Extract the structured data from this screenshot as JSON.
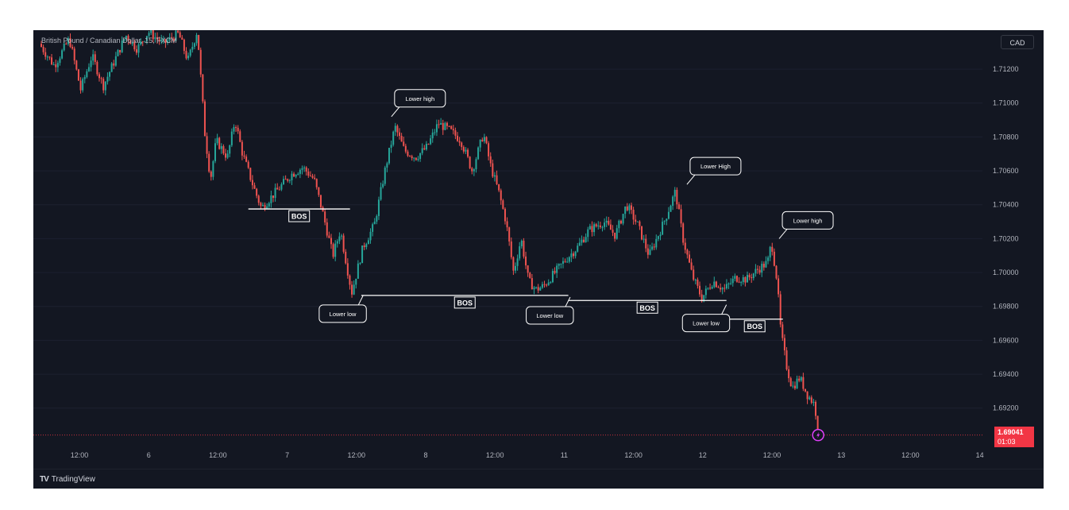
{
  "header": {
    "symbol_title": "British Pound / Canadian Dollar, 15, FXCM",
    "currency": "CAD"
  },
  "price_badge": {
    "price": "1.69041",
    "countdown": "01:03",
    "color": "#f23645"
  },
  "footer": {
    "brand": "TradingView",
    "logo_mark": "TV"
  },
  "colors": {
    "background": "#131722",
    "up": "#26a69a",
    "down": "#ef5350",
    "annotation": "#ffffff",
    "alert": "#e040fb"
  },
  "chart_data": {
    "type": "candlestick",
    "title": "British Pound / Canadian Dollar, 15, FXCM",
    "ylim": [
      1.6903,
      1.7143
    ],
    "y_ticks": [
      "1.71200",
      "1.71000",
      "1.70800",
      "1.70600",
      "1.70400",
      "1.70200",
      "1.70000",
      "1.69800",
      "1.69600",
      "1.69400",
      "1.69200"
    ],
    "x_ticks": [
      "12:00",
      "6",
      "12:00",
      "7",
      "12:00",
      "8",
      "12:00",
      "11",
      "12:00",
      "12",
      "12:00",
      "13",
      "12:00",
      "14"
    ],
    "x_range": [
      0,
      25
    ],
    "last_price": 1.69041,
    "price_path": [
      {
        "t": 0.0,
        "p": 1.7135
      },
      {
        "t": 0.4,
        "p": 1.7122
      },
      {
        "t": 0.8,
        "p": 1.7138
      },
      {
        "t": 1.1,
        "p": 1.7108
      },
      {
        "t": 1.4,
        "p": 1.7128
      },
      {
        "t": 1.7,
        "p": 1.711
      },
      {
        "t": 2.0,
        "p": 1.7125
      },
      {
        "t": 2.3,
        "p": 1.714
      },
      {
        "t": 2.6,
        "p": 1.7132
      },
      {
        "t": 2.9,
        "p": 1.7142
      },
      {
        "t": 3.3,
        "p": 1.7135
      },
      {
        "t": 3.7,
        "p": 1.7141
      },
      {
        "t": 3.95,
        "p": 1.7125
      },
      {
        "t": 4.2,
        "p": 1.7143
      },
      {
        "t": 4.4,
        "p": 1.7082
      },
      {
        "t": 4.55,
        "p": 1.7055
      },
      {
        "t": 4.7,
        "p": 1.7078
      },
      {
        "t": 5.0,
        "p": 1.7068
      },
      {
        "t": 5.2,
        "p": 1.709
      },
      {
        "t": 5.4,
        "p": 1.707
      },
      {
        "t": 5.7,
        "p": 1.705
      },
      {
        "t": 5.9,
        "p": 1.7038
      },
      {
        "t": 6.3,
        "p": 1.7048
      },
      {
        "t": 6.7,
        "p": 1.7058
      },
      {
        "t": 7.0,
        "p": 1.7062
      },
      {
        "t": 7.3,
        "p": 1.7055
      },
      {
        "t": 7.5,
        "p": 1.7038
      },
      {
        "t": 7.8,
        "p": 1.701
      },
      {
        "t": 8.0,
        "p": 1.7025
      },
      {
        "t": 8.3,
        "p": 1.6988
      },
      {
        "t": 8.6,
        "p": 1.7015
      },
      {
        "t": 8.9,
        "p": 1.7028
      },
      {
        "t": 9.2,
        "p": 1.7062
      },
      {
        "t": 9.45,
        "p": 1.7086
      },
      {
        "t": 9.7,
        "p": 1.7072
      },
      {
        "t": 10.0,
        "p": 1.7068
      },
      {
        "t": 10.3,
        "p": 1.7074
      },
      {
        "t": 10.6,
        "p": 1.7088
      },
      {
        "t": 10.9,
        "p": 1.7084
      },
      {
        "t": 11.2,
        "p": 1.7078
      },
      {
        "t": 11.5,
        "p": 1.706
      },
      {
        "t": 11.8,
        "p": 1.7082
      },
      {
        "t": 12.0,
        "p": 1.7062
      },
      {
        "t": 12.2,
        "p": 1.7048
      },
      {
        "t": 12.4,
        "p": 1.703
      },
      {
        "t": 12.6,
        "p": 1.7
      },
      {
        "t": 12.8,
        "p": 1.702
      },
      {
        "t": 13.0,
        "p": 1.6995
      },
      {
        "t": 13.2,
        "p": 1.699
      },
      {
        "t": 13.4,
        "p": 1.6992
      },
      {
        "t": 13.7,
        "p": 1.7
      },
      {
        "t": 14.0,
        "p": 1.7008
      },
      {
        "t": 14.3,
        "p": 1.7015
      },
      {
        "t": 14.6,
        "p": 1.7025
      },
      {
        "t": 15.0,
        "p": 1.703
      },
      {
        "t": 15.3,
        "p": 1.7022
      },
      {
        "t": 15.6,
        "p": 1.704
      },
      {
        "t": 15.9,
        "p": 1.7028
      },
      {
        "t": 16.2,
        "p": 1.701
      },
      {
        "t": 16.6,
        "p": 1.703
      },
      {
        "t": 16.9,
        "p": 1.7048
      },
      {
        "t": 17.1,
        "p": 1.702
      },
      {
        "t": 17.35,
        "p": 1.6998
      },
      {
        "t": 17.6,
        "p": 1.6985
      },
      {
        "t": 17.9,
        "p": 1.6995
      },
      {
        "t": 18.2,
        "p": 1.699
      },
      {
        "t": 18.5,
        "p": 1.6997
      },
      {
        "t": 18.8,
        "p": 1.6996
      },
      {
        "t": 19.1,
        "p": 1.7002
      },
      {
        "t": 19.35,
        "p": 1.7006
      },
      {
        "t": 19.45,
        "p": 1.7018
      },
      {
        "t": 19.6,
        "p": 1.6995
      },
      {
        "t": 19.7,
        "p": 1.6965
      },
      {
        "t": 19.85,
        "p": 1.6945
      },
      {
        "t": 20.0,
        "p": 1.6932
      },
      {
        "t": 20.2,
        "p": 1.6938
      },
      {
        "t": 20.4,
        "p": 1.6928
      },
      {
        "t": 20.6,
        "p": 1.6922
      },
      {
        "t": 20.7,
        "p": 1.69041
      }
    ],
    "annotations": [
      {
        "label": "BOS",
        "level": 1.70375,
        "t_start": 5.5,
        "t_end": 8.2
      },
      {
        "label": "BOS",
        "level": 1.69865,
        "t_start": 8.5,
        "t_end": 14.0
      },
      {
        "label": "BOS",
        "level": 1.69835,
        "t_start": 14.0,
        "t_end": 18.2
      },
      {
        "label": "BOS",
        "level": 1.69725,
        "t_start": 18.2,
        "t_end": 19.7
      }
    ],
    "callouts": [
      {
        "label": "Lower high",
        "t": 9.3,
        "p": 1.7092
      },
      {
        "label": "Lower low",
        "t": 8.55,
        "p": 1.69865
      },
      {
        "label": "Lower low",
        "t": 14.05,
        "p": 1.69855
      },
      {
        "label": "Lower High",
        "t": 17.15,
        "p": 1.7052
      },
      {
        "label": "Lower low",
        "t": 18.2,
        "p": 1.6981
      },
      {
        "label": "Lower high",
        "t": 19.6,
        "p": 1.702
      }
    ]
  }
}
